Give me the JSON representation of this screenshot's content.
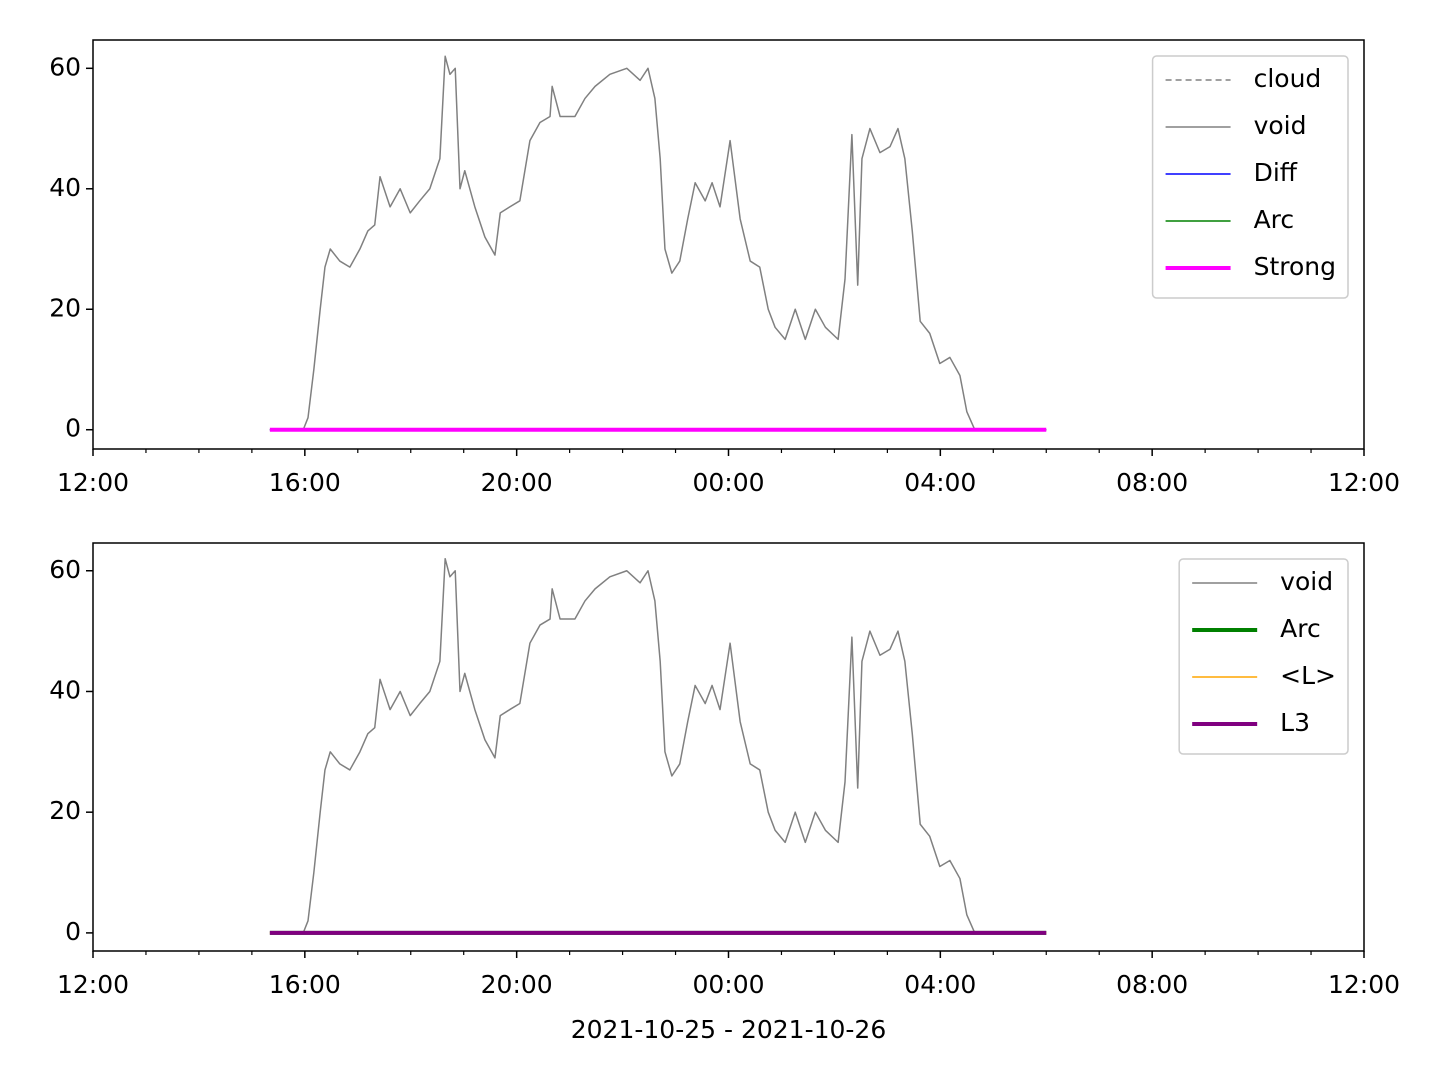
{
  "chart_data": [
    {
      "type": "line",
      "xlim": [
        12,
        36
      ],
      "ylim": [
        -3.2,
        64.7
      ],
      "xticks": [
        {
          "value": 12,
          "label": "12:00"
        },
        {
          "value": 16,
          "label": "16:00"
        },
        {
          "value": 20,
          "label": "20:00"
        },
        {
          "value": 24,
          "label": "00:00"
        },
        {
          "value": 28,
          "label": "04:00"
        },
        {
          "value": 32,
          "label": "08:00"
        },
        {
          "value": 36,
          "label": "12:00"
        }
      ],
      "xminorticks": [
        13,
        14,
        15,
        17,
        18,
        19,
        21,
        22,
        23,
        25,
        26,
        27,
        29,
        30,
        31,
        33,
        34,
        35
      ],
      "yticks": [
        0,
        20,
        40,
        60
      ],
      "legend": "upper right",
      "series": [
        {
          "name": "cloud",
          "color": "#808080",
          "linestyle": "dashed",
          "linewidth": 1.5,
          "x": [
            15.34,
            30.0
          ],
          "values": [
            0,
            0
          ]
        },
        {
          "name": "void",
          "color": "#808080",
          "linestyle": "solid",
          "linewidth": 1.5,
          "x": [
            15.97,
            16.06,
            16.17,
            16.29,
            16.38,
            16.48,
            16.66,
            16.85,
            17.04,
            17.19,
            17.32,
            17.42,
            17.61,
            17.8,
            17.99,
            18.17,
            18.36,
            18.55,
            18.65,
            18.74,
            18.84,
            18.93,
            19.02,
            19.21,
            19.4,
            19.59,
            19.69,
            19.87,
            20.06,
            20.25,
            20.44,
            20.63,
            20.67,
            20.82,
            21.1,
            21.29,
            21.48,
            21.76,
            22.08,
            22.33,
            22.48,
            22.61,
            22.71,
            22.8,
            22.93,
            23.08,
            23.23,
            23.37,
            23.56,
            23.69,
            23.84,
            24.03,
            24.22,
            24.41,
            24.59,
            24.75,
            24.88,
            25.07,
            25.26,
            25.45,
            25.64,
            25.83,
            26.07,
            26.2,
            26.33,
            26.44,
            26.52,
            26.67,
            26.86,
            27.05,
            27.2,
            27.33,
            27.47,
            27.62,
            27.8,
            27.99,
            28.18,
            28.37,
            28.5,
            28.65
          ],
          "values": [
            0,
            2,
            10,
            20,
            27,
            30,
            28,
            27,
            30,
            33,
            34,
            42,
            37,
            40,
            36,
            38,
            40,
            45,
            62,
            59,
            60,
            40,
            43,
            37,
            32,
            29,
            36,
            37,
            38,
            48,
            51,
            52,
            57,
            52,
            52,
            55,
            57,
            59,
            60,
            58,
            60,
            55,
            45,
            30,
            26,
            28,
            35,
            41,
            38,
            41,
            37,
            48,
            35,
            28,
            27,
            20,
            17,
            15,
            20,
            15,
            20,
            17,
            15,
            25,
            49,
            24,
            45,
            50,
            46,
            47,
            50,
            45,
            33,
            18,
            16,
            11,
            12,
            9,
            3,
            0
          ]
        },
        {
          "name": "Diff",
          "color": "#0000ff",
          "linestyle": "solid",
          "linewidth": 1.5,
          "x": [
            15.34,
            30.0
          ],
          "values": [
            0,
            0
          ]
        },
        {
          "name": "Arc",
          "color": "#008000",
          "linestyle": "solid",
          "linewidth": 1.5,
          "x": [
            15.34,
            30.0
          ],
          "values": [
            0,
            0
          ]
        },
        {
          "name": "Strong",
          "color": "#ff00ff",
          "linestyle": "solid",
          "linewidth": 4,
          "x": [
            15.34,
            30.0
          ],
          "values": [
            0,
            0
          ]
        }
      ]
    },
    {
      "type": "line",
      "xlim": [
        12,
        36
      ],
      "ylim": [
        -3.0,
        64.6
      ],
      "xticks": [
        {
          "value": 12,
          "label": "12:00"
        },
        {
          "value": 16,
          "label": "16:00"
        },
        {
          "value": 20,
          "label": "20:00"
        },
        {
          "value": 24,
          "label": "00:00"
        },
        {
          "value": 28,
          "label": "04:00"
        },
        {
          "value": 32,
          "label": "08:00"
        },
        {
          "value": 36,
          "label": "12:00"
        }
      ],
      "xminorticks": [
        13,
        14,
        15,
        17,
        18,
        19,
        21,
        22,
        23,
        25,
        26,
        27,
        29,
        30,
        31,
        33,
        34,
        35
      ],
      "yticks": [
        0,
        20,
        40,
        60
      ],
      "legend": "upper right",
      "xlabel": "2021-10-25 - 2021-10-26",
      "series": [
        {
          "name": "void",
          "color": "#808080",
          "linestyle": "solid",
          "linewidth": 1.5,
          "x": [
            15.97,
            16.06,
            16.17,
            16.29,
            16.38,
            16.48,
            16.66,
            16.85,
            17.04,
            17.19,
            17.32,
            17.42,
            17.61,
            17.8,
            17.99,
            18.17,
            18.36,
            18.55,
            18.65,
            18.74,
            18.84,
            18.93,
            19.02,
            19.21,
            19.4,
            19.59,
            19.69,
            19.87,
            20.06,
            20.25,
            20.44,
            20.63,
            20.67,
            20.82,
            21.1,
            21.29,
            21.48,
            21.76,
            22.08,
            22.33,
            22.48,
            22.61,
            22.71,
            22.8,
            22.93,
            23.08,
            23.23,
            23.37,
            23.56,
            23.69,
            23.84,
            24.03,
            24.22,
            24.41,
            24.59,
            24.75,
            24.88,
            25.07,
            25.26,
            25.45,
            25.64,
            25.83,
            26.07,
            26.2,
            26.33,
            26.44,
            26.52,
            26.67,
            26.86,
            27.05,
            27.2,
            27.33,
            27.47,
            27.62,
            27.8,
            27.99,
            28.18,
            28.37,
            28.5,
            28.65
          ],
          "values": [
            0,
            2,
            10,
            20,
            27,
            30,
            28,
            27,
            30,
            33,
            34,
            42,
            37,
            40,
            36,
            38,
            40,
            45,
            62,
            59,
            60,
            40,
            43,
            37,
            32,
            29,
            36,
            37,
            38,
            48,
            51,
            52,
            57,
            52,
            52,
            55,
            57,
            59,
            60,
            58,
            60,
            55,
            45,
            30,
            26,
            28,
            35,
            41,
            38,
            41,
            37,
            48,
            35,
            28,
            27,
            20,
            17,
            15,
            20,
            15,
            20,
            17,
            15,
            25,
            49,
            24,
            45,
            50,
            46,
            47,
            50,
            45,
            33,
            18,
            16,
            11,
            12,
            9,
            3,
            0
          ]
        },
        {
          "name": "Arc",
          "color": "#008000",
          "linestyle": "solid",
          "linewidth": 4,
          "x": [
            15.34,
            30.0
          ],
          "values": [
            0,
            0
          ]
        },
        {
          "name": "<L>",
          "color": "#ffa500",
          "linestyle": "solid",
          "linewidth": 1.5,
          "x": [
            15.34,
            30.0
          ],
          "values": [
            0,
            0
          ]
        },
        {
          "name": "L3",
          "color": "#800080",
          "linestyle": "solid",
          "linewidth": 4,
          "x": [
            15.34,
            30.0
          ],
          "values": [
            0,
            0
          ]
        }
      ]
    }
  ]
}
